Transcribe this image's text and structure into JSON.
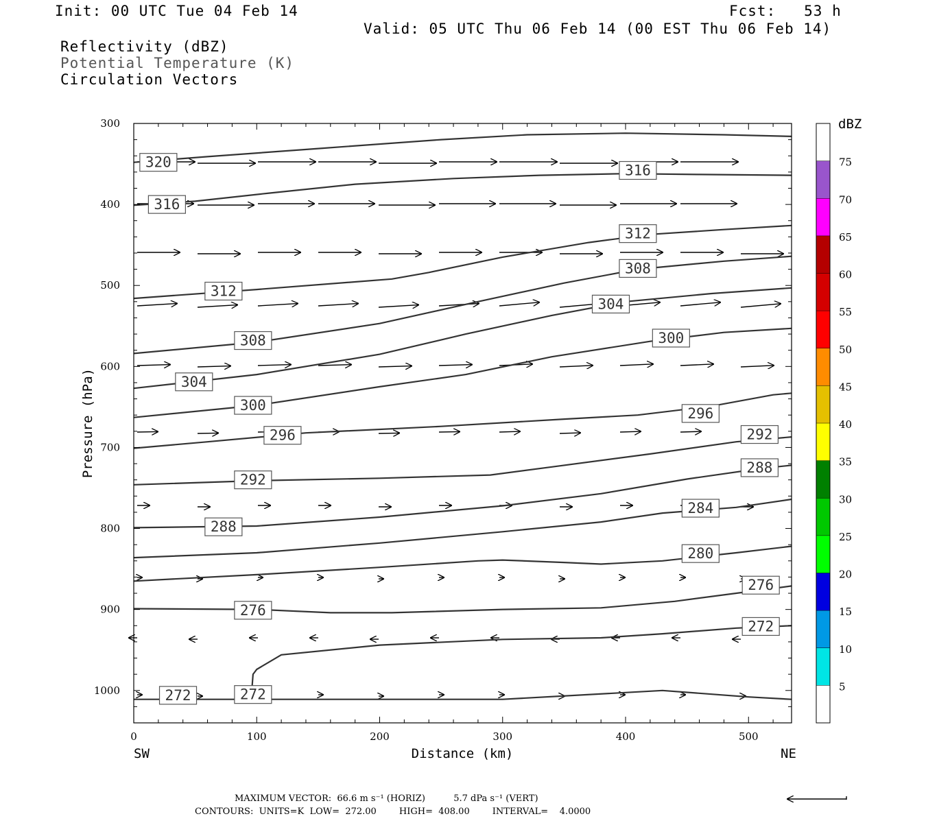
{
  "header": {
    "init": "Init: 00 UTC Tue 04 Feb 14",
    "fcst": "Fcst:   53 h",
    "valid": "Valid: 05 UTC Thu 06 Feb 14 (00 EST Thu 06 Feb 14)",
    "fields": [
      "Reflectivity (dBZ)",
      "Potential Temperature (K)",
      "Circulation Vectors"
    ]
  },
  "footer": {
    "max_vector": "MAXIMUM VECTOR:  66.6 m s⁻¹ (HORIZ)          5.7 dPa s⁻¹ (VERT)",
    "contours": "CONTOURS:  UNITS=K  LOW=  272.00        HIGH=  408.00        INTERVAL=    4.0000"
  },
  "chart_data": {
    "type": "line",
    "xlabel": "Distance (km)",
    "ylabel": "Pressure (hPa)",
    "xlim": [
      0,
      535
    ],
    "ylim": [
      1040,
      300
    ],
    "x_ticks": [
      0,
      100,
      200,
      300,
      400,
      500
    ],
    "y_ticks": [
      300,
      400,
      500,
      600,
      700,
      800,
      900,
      1000
    ],
    "x_end_labels": {
      "left": "SW",
      "right": "NE"
    },
    "colorbar": {
      "title": "dBZ",
      "levels": [
        5,
        10,
        15,
        20,
        25,
        30,
        35,
        40,
        45,
        50,
        55,
        60,
        65,
        70,
        75
      ],
      "colors": [
        "#ffffff",
        "#00e5e5",
        "#0099e5",
        "#0000e0",
        "#00ff00",
        "#00c800",
        "#008000",
        "#ffff00",
        "#e5c000",
        "#ff8c00",
        "#ff0000",
        "#d40000",
        "#b40000",
        "#ff00ff",
        "#9955cc",
        "#ffffff"
      ]
    },
    "series": [
      {
        "name": "320",
        "label_pos": [
          20,
          348
        ],
        "points": [
          [
            0,
            348
          ],
          [
            60,
            341
          ],
          [
            150,
            331
          ],
          [
            250,
            320
          ],
          [
            320,
            314
          ],
          [
            400,
            312
          ],
          [
            480,
            314
          ],
          [
            535,
            316
          ]
        ]
      },
      {
        "name": "316",
        "label_pos": [
          410,
          358
        ],
        "points": [
          [
            0,
            401
          ],
          [
            50,
            396
          ],
          [
            110,
            386
          ],
          [
            180,
            375
          ],
          [
            260,
            368
          ],
          [
            330,
            364
          ],
          [
            400,
            362
          ],
          [
            460,
            363
          ],
          [
            535,
            364
          ]
        ]
      },
      {
        "name": "316",
        "label_pos": [
          27,
          400
        ],
        "points": [
          [
            0,
            401
          ],
          [
            50,
            396
          ],
          [
            110,
            386
          ],
          [
            180,
            375
          ],
          [
            260,
            368
          ],
          [
            330,
            364
          ],
          [
            400,
            362
          ],
          [
            460,
            363
          ],
          [
            535,
            364
          ]
        ]
      },
      {
        "name": "312",
        "label_pos": [
          73,
          507
        ],
        "points": [
          [
            0,
            516
          ],
          [
            100,
            505
          ],
          [
            210,
            492
          ],
          [
            240,
            484
          ],
          [
            300,
            465
          ],
          [
            370,
            447
          ],
          [
            420,
            437
          ],
          [
            480,
            431
          ],
          [
            535,
            426
          ]
        ]
      },
      {
        "name": "312",
        "label_pos": [
          410,
          436
        ],
        "points": [
          [
            0,
            516
          ],
          [
            100,
            505
          ],
          [
            210,
            492
          ],
          [
            240,
            484
          ],
          [
            300,
            465
          ],
          [
            370,
            447
          ],
          [
            420,
            437
          ],
          [
            480,
            431
          ],
          [
            535,
            426
          ]
        ]
      },
      {
        "name": "308",
        "label_pos": [
          97,
          568
        ],
        "points": [
          [
            0,
            584
          ],
          [
            100,
            570
          ],
          [
            200,
            547
          ],
          [
            280,
            520
          ],
          [
            350,
            497
          ],
          [
            410,
            480
          ],
          [
            480,
            470
          ],
          [
            535,
            464
          ]
        ]
      },
      {
        "name": "308",
        "label_pos": [
          410,
          479
        ],
        "points": [
          [
            0,
            584
          ],
          [
            100,
            570
          ],
          [
            200,
            547
          ],
          [
            280,
            520
          ],
          [
            350,
            497
          ],
          [
            410,
            480
          ],
          [
            480,
            470
          ],
          [
            535,
            464
          ]
        ]
      },
      {
        "name": "304",
        "label_pos": [
          49,
          619
        ],
        "points": [
          [
            0,
            627
          ],
          [
            100,
            610
          ],
          [
            200,
            585
          ],
          [
            270,
            560
          ],
          [
            340,
            537
          ],
          [
            400,
            520
          ],
          [
            470,
            510
          ],
          [
            535,
            503
          ]
        ]
      },
      {
        "name": "304",
        "label_pos": [
          388,
          523
        ],
        "points": [
          [
            0,
            627
          ],
          [
            100,
            610
          ],
          [
            200,
            585
          ],
          [
            270,
            560
          ],
          [
            340,
            537
          ],
          [
            400,
            520
          ],
          [
            470,
            510
          ],
          [
            535,
            503
          ]
        ]
      },
      {
        "name": "300",
        "label_pos": [
          97,
          648
        ],
        "points": [
          [
            0,
            663
          ],
          [
            100,
            648
          ],
          [
            200,
            625
          ],
          [
            270,
            610
          ],
          [
            340,
            588
          ],
          [
            420,
            569
          ],
          [
            480,
            558
          ],
          [
            535,
            553
          ]
        ]
      },
      {
        "name": "300",
        "label_pos": [
          437,
          565
        ],
        "points": [
          [
            0,
            663
          ],
          [
            100,
            648
          ],
          [
            200,
            625
          ],
          [
            270,
            610
          ],
          [
            340,
            588
          ],
          [
            420,
            569
          ],
          [
            480,
            558
          ],
          [
            535,
            553
          ]
        ]
      },
      {
        "name": "296",
        "label_pos": [
          121,
          685
        ],
        "points": [
          [
            0,
            701
          ],
          [
            60,
            693
          ],
          [
            140,
            682
          ],
          [
            250,
            674
          ],
          [
            350,
            665
          ],
          [
            410,
            660
          ],
          [
            470,
            649
          ],
          [
            520,
            635
          ],
          [
            535,
            633
          ]
        ]
      },
      {
        "name": "296",
        "label_pos": [
          461,
          658
        ],
        "points": [
          [
            0,
            701
          ],
          [
            60,
            693
          ],
          [
            140,
            682
          ],
          [
            250,
            674
          ],
          [
            350,
            665
          ],
          [
            410,
            660
          ],
          [
            470,
            649
          ],
          [
            520,
            635
          ],
          [
            535,
            633
          ]
        ]
      },
      {
        "name": "292",
        "label_pos": [
          97,
          740
        ],
        "points": [
          [
            0,
            746
          ],
          [
            100,
            741
          ],
          [
            200,
            738
          ],
          [
            290,
            734
          ],
          [
            340,
            724
          ],
          [
            420,
            708
          ],
          [
            490,
            693
          ],
          [
            535,
            687
          ]
        ]
      },
      {
        "name": "292",
        "label_pos": [
          509,
          684
        ],
        "points": [
          [
            0,
            746
          ],
          [
            100,
            741
          ],
          [
            200,
            738
          ],
          [
            290,
            734
          ],
          [
            340,
            724
          ],
          [
            420,
            708
          ],
          [
            490,
            693
          ],
          [
            535,
            687
          ]
        ]
      },
      {
        "name": "288",
        "label_pos": [
          73,
          798
        ],
        "points": [
          [
            0,
            799
          ],
          [
            100,
            797
          ],
          [
            200,
            786
          ],
          [
            300,
            772
          ],
          [
            380,
            757
          ],
          [
            450,
            739
          ],
          [
            510,
            726
          ],
          [
            535,
            722
          ]
        ]
      },
      {
        "name": "288",
        "label_pos": [
          509,
          725
        ],
        "points": [
          [
            0,
            799
          ],
          [
            100,
            797
          ],
          [
            200,
            786
          ],
          [
            300,
            772
          ],
          [
            380,
            757
          ],
          [
            450,
            739
          ],
          [
            510,
            726
          ],
          [
            535,
            722
          ]
        ]
      },
      {
        "name": "284",
        "label_pos": [
          461,
          775
        ],
        "points": [
          [
            0,
            836
          ],
          [
            100,
            830
          ],
          [
            200,
            818
          ],
          [
            300,
            804
          ],
          [
            380,
            792
          ],
          [
            430,
            781
          ],
          [
            490,
            774
          ],
          [
            535,
            764
          ]
        ]
      },
      {
        "name": "280",
        "label_pos": [
          461,
          831
        ],
        "points": [
          [
            0,
            865
          ],
          [
            100,
            857
          ],
          [
            200,
            848
          ],
          [
            280,
            840
          ],
          [
            300,
            839
          ],
          [
            350,
            842
          ],
          [
            380,
            844
          ],
          [
            430,
            840
          ],
          [
            490,
            830
          ],
          [
            535,
            822
          ]
        ]
      },
      {
        "name": "276",
        "label_pos": [
          97,
          901
        ],
        "points": [
          [
            0,
            899
          ],
          [
            100,
            900
          ],
          [
            160,
            904
          ],
          [
            210,
            904
          ],
          [
            300,
            900
          ],
          [
            380,
            898
          ],
          [
            440,
            890
          ],
          [
            490,
            880
          ],
          [
            535,
            871
          ]
        ]
      },
      {
        "name": "276",
        "label_pos": [
          510,
          870
        ],
        "points": [
          [
            0,
            899
          ],
          [
            100,
            900
          ],
          [
            160,
            904
          ],
          [
            210,
            904
          ],
          [
            300,
            900
          ],
          [
            380,
            898
          ],
          [
            440,
            890
          ],
          [
            490,
            880
          ],
          [
            535,
            871
          ]
        ]
      },
      {
        "name": "272",
        "label_pos": [
          510,
          921
        ],
        "points": [
          [
            96,
            1000
          ],
          [
            97,
            980
          ],
          [
            100,
            974
          ],
          [
            120,
            956
          ],
          [
            200,
            944
          ],
          [
            300,
            937
          ],
          [
            380,
            935
          ],
          [
            430,
            930
          ],
          [
            490,
            923
          ],
          [
            535,
            920
          ]
        ]
      },
      {
        "name": "272",
        "label_pos": [
          36,
          1006
        ],
        "points": [
          [
            0,
            1011
          ],
          [
            100,
            1011
          ],
          [
            200,
            1011
          ],
          [
            300,
            1011
          ],
          [
            430,
            1000
          ],
          [
            500,
            1008
          ],
          [
            535,
            1011
          ]
        ]
      },
      {
        "name": "272",
        "label_pos": [
          97,
          1005
        ],
        "points": [
          [
            0,
            1011
          ],
          [
            100,
            1011
          ],
          [
            200,
            1011
          ],
          [
            300,
            1011
          ],
          [
            430,
            1000
          ],
          [
            500,
            1008
          ],
          [
            535,
            1011
          ]
        ]
      }
    ]
  }
}
